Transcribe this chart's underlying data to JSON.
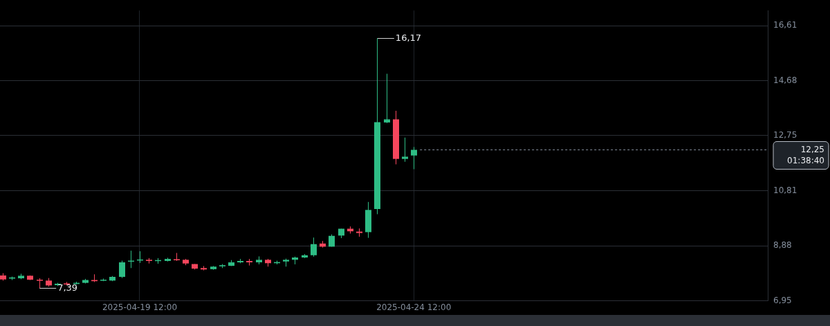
{
  "chart_data": {
    "type": "candlestick",
    "x": [
      "2025-04-17T00:00",
      "2025-04-17T04:00",
      "2025-04-17T08:00",
      "2025-04-17T12:00",
      "2025-04-17T16:00",
      "2025-04-17T20:00",
      "2025-04-18T00:00",
      "2025-04-18T04:00",
      "2025-04-18T08:00",
      "2025-04-18T12:00",
      "2025-04-18T16:00",
      "2025-04-18T20:00",
      "2025-04-19T00:00",
      "2025-04-19T04:00",
      "2025-04-19T08:00",
      "2025-04-19T12:00",
      "2025-04-19T16:00",
      "2025-04-19T20:00",
      "2025-04-20T00:00",
      "2025-04-20T04:00",
      "2025-04-20T08:00",
      "2025-04-20T12:00",
      "2025-04-20T16:00",
      "2025-04-20T20:00",
      "2025-04-21T00:00",
      "2025-04-21T04:00",
      "2025-04-21T08:00",
      "2025-04-21T12:00",
      "2025-04-21T16:00",
      "2025-04-21T20:00",
      "2025-04-22T00:00",
      "2025-04-22T04:00",
      "2025-04-22T08:00",
      "2025-04-22T12:00",
      "2025-04-22T16:00",
      "2025-04-22T20:00",
      "2025-04-23T00:00",
      "2025-04-23T04:00",
      "2025-04-23T08:00",
      "2025-04-23T12:00",
      "2025-04-23T16:00",
      "2025-04-23T20:00",
      "2025-04-24T00:00",
      "2025-04-24T04:00",
      "2025-04-24T08:00",
      "2025-04-24T12:00"
    ],
    "ohlc": [
      [
        7.84,
        7.92,
        7.66,
        7.7
      ],
      [
        7.73,
        7.8,
        7.68,
        7.77
      ],
      [
        7.74,
        7.9,
        7.71,
        7.83
      ],
      [
        7.83,
        7.84,
        7.68,
        7.69
      ],
      [
        7.69,
        7.74,
        7.39,
        7.66
      ],
      [
        7.66,
        7.75,
        7.45,
        7.49
      ],
      [
        7.5,
        7.58,
        7.47,
        7.55
      ],
      [
        7.56,
        7.61,
        7.5,
        7.53
      ],
      [
        7.54,
        7.62,
        7.52,
        7.58
      ],
      [
        7.58,
        7.72,
        7.56,
        7.68
      ],
      [
        7.68,
        7.88,
        7.61,
        7.64
      ],
      [
        7.66,
        7.73,
        7.64,
        7.69
      ],
      [
        7.66,
        7.82,
        7.64,
        7.79
      ],
      [
        7.79,
        8.36,
        7.75,
        8.3
      ],
      [
        8.33,
        8.71,
        8.1,
        8.36
      ],
      [
        8.37,
        8.69,
        8.28,
        8.4
      ],
      [
        8.39,
        8.45,
        8.26,
        8.35
      ],
      [
        8.35,
        8.45,
        8.25,
        8.38
      ],
      [
        8.35,
        8.46,
        8.33,
        8.42
      ],
      [
        8.41,
        8.63,
        8.35,
        8.38
      ],
      [
        8.39,
        8.42,
        8.2,
        8.26
      ],
      [
        8.24,
        8.24,
        8.05,
        8.08
      ],
      [
        8.1,
        8.17,
        8.02,
        8.05
      ],
      [
        8.06,
        8.17,
        8.04,
        8.15
      ],
      [
        8.16,
        8.24,
        8.1,
        8.2
      ],
      [
        8.18,
        8.38,
        8.17,
        8.3
      ],
      [
        8.3,
        8.42,
        8.27,
        8.35
      ],
      [
        8.35,
        8.42,
        8.19,
        8.3
      ],
      [
        8.3,
        8.51,
        8.23,
        8.39
      ],
      [
        8.39,
        8.42,
        8.15,
        8.27
      ],
      [
        8.27,
        8.36,
        8.23,
        8.31
      ],
      [
        8.33,
        8.43,
        8.15,
        8.39
      ],
      [
        8.39,
        8.5,
        8.23,
        8.47
      ],
      [
        8.47,
        8.59,
        8.45,
        8.55
      ],
      [
        8.55,
        9.17,
        8.5,
        8.94
      ],
      [
        8.96,
        9.05,
        8.82,
        8.85
      ],
      [
        8.85,
        9.28,
        8.85,
        9.23
      ],
      [
        9.24,
        9.48,
        9.15,
        9.48
      ],
      [
        9.48,
        9.56,
        9.31,
        9.39
      ],
      [
        9.38,
        9.49,
        9.2,
        9.33
      ],
      [
        9.36,
        10.42,
        9.16,
        10.14
      ],
      [
        10.17,
        16.17,
        9.99,
        13.22
      ],
      [
        13.21,
        14.92,
        13.19,
        13.32
      ],
      [
        13.32,
        13.62,
        11.74,
        11.93
      ],
      [
        11.93,
        12.68,
        11.83,
        12.01
      ],
      [
        12.05,
        12.35,
        11.57,
        12.25
      ]
    ],
    "colors": [
      "#f6465d",
      "#2ebd85",
      "#2ebd85",
      "#f6465d",
      "#f6465d",
      "#f6465d",
      "#2ebd85",
      "#f6465d",
      "#2ebd85",
      "#2ebd85",
      "#f6465d",
      "#2ebd85",
      "#2ebd85",
      "#2ebd85",
      "#2ebd85",
      "#2ebd85",
      "#f6465d",
      "#2ebd85",
      "#2ebd85",
      "#f6465d",
      "#f6465d",
      "#f6465d",
      "#f6465d",
      "#2ebd85",
      "#2ebd85",
      "#2ebd85",
      "#2ebd85",
      "#f6465d",
      "#2ebd85",
      "#f6465d",
      "#2ebd85",
      "#2ebd85",
      "#2ebd85",
      "#2ebd85",
      "#2ebd85",
      "#f6465d",
      "#2ebd85",
      "#2ebd85",
      "#f6465d",
      "#f6465d",
      "#2ebd85",
      "#2ebd85",
      "#2ebd85",
      "#f6465d",
      "#2ebd85",
      "#2ebd85"
    ],
    "xlim": [
      "2025-04-16T22:50",
      "2025-04-30T23:00"
    ],
    "xticks": [
      {
        "value": "2025-04-19T12:00",
        "label": "2025-04-19 12:00"
      },
      {
        "value": "2025-04-24T12:00",
        "label": "2025-04-24 12:00"
      }
    ],
    "ylim": [
      6.95,
      17.14
    ],
    "yticks": [
      {
        "value": 6.95,
        "label": "6,95"
      },
      {
        "value": 8.88,
        "label": "8,88"
      },
      {
        "value": 10.81,
        "label": "10,81"
      },
      {
        "value": 12.75,
        "label": "12,75"
      },
      {
        "value": 14.68,
        "label": "14,68"
      },
      {
        "value": 16.61,
        "label": "16,61"
      }
    ],
    "grid": true,
    "ref_lines": [
      {
        "axis": "y",
        "value": 12.25,
        "label": "12,25\n01:38:40",
        "color": "#848e9c",
        "line_style": "dashed"
      }
    ],
    "annotations": [
      {
        "text": "16,17",
        "x": "2025-04-23T20:00",
        "y": 16.17
      },
      {
        "text": "7,39",
        "x": "2025-04-17T16:00",
        "y": 7.39
      }
    ]
  }
}
